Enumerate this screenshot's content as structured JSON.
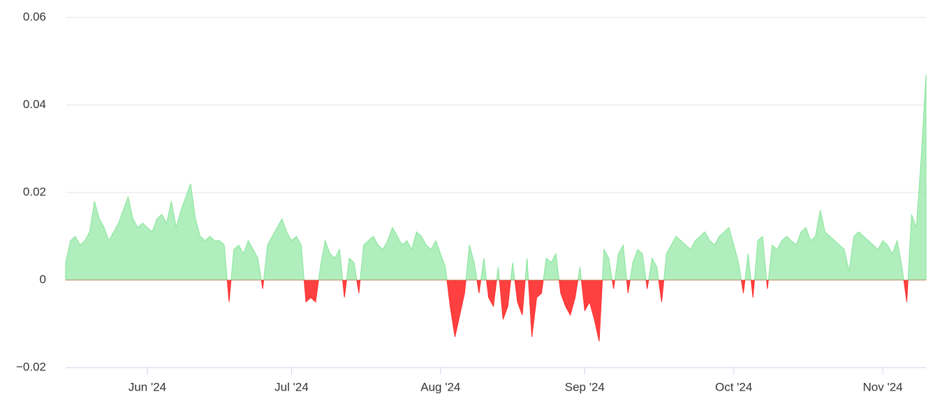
{
  "chart_data": {
    "type": "area",
    "categories": [
      null,
      null,
      null,
      null,
      null,
      null,
      null,
      null,
      null,
      null,
      null,
      null,
      null,
      null,
      null,
      null,
      null,
      "Jun '24",
      null,
      null,
      null,
      null,
      null,
      null,
      null,
      null,
      null,
      null,
      null,
      null,
      null,
      null,
      null,
      null,
      null,
      null,
      null,
      null,
      null,
      null,
      null,
      null,
      null,
      null,
      null,
      null,
      null,
      "Jul '24",
      null,
      null,
      null,
      null,
      null,
      null,
      null,
      null,
      null,
      null,
      null,
      null,
      null,
      null,
      null,
      null,
      null,
      null,
      null,
      null,
      null,
      null,
      null,
      null,
      null,
      null,
      null,
      null,
      null,
      null,
      "Aug '24",
      null,
      null,
      null,
      null,
      null,
      null,
      null,
      null,
      null,
      null,
      null,
      null,
      null,
      null,
      null,
      null,
      null,
      null,
      null,
      null,
      null,
      null,
      null,
      null,
      null,
      null,
      null,
      null,
      null,
      "Sep '24",
      null,
      null,
      null,
      null,
      null,
      null,
      null,
      null,
      null,
      null,
      null,
      null,
      null,
      null,
      null,
      null,
      null,
      null,
      null,
      null,
      null,
      null,
      null,
      null,
      null,
      null,
      null,
      null,
      null,
      null,
      "Oct '24",
      null,
      null,
      null,
      null,
      null,
      null,
      null,
      null,
      null,
      null,
      null,
      null,
      null,
      null,
      null,
      null,
      null,
      null,
      null,
      null,
      null,
      null,
      null,
      null,
      null,
      null,
      null,
      null,
      null,
      null,
      "Nov '24",
      null,
      null,
      null,
      null,
      null,
      null,
      null,
      null,
      null
    ],
    "series": [
      {
        "color": "#86e59a",
        "negative_color": "#ff2b2b",
        "values": [
          0.004,
          0.009,
          0.01,
          0.008,
          0.009,
          0.011,
          0.018,
          0.014,
          0.012,
          0.009,
          0.011,
          0.013,
          0.016,
          0.019,
          0.014,
          0.012,
          0.013,
          0.012,
          0.011,
          0.014,
          0.015,
          0.013,
          0.018,
          0.012,
          0.016,
          0.019,
          0.022,
          0.014,
          0.01,
          0.009,
          0.01,
          0.009,
          0.009,
          0.008,
          -0.005,
          0.007,
          0.008,
          0.006,
          0.009,
          0.007,
          0.005,
          -0.002,
          0.008,
          0.01,
          0.012,
          0.014,
          0.011,
          0.009,
          0.01,
          0.008,
          -0.005,
          -0.004,
          -0.005,
          0.003,
          0.009,
          0.006,
          0.005,
          0.007,
          -0.004,
          0.005,
          0.004,
          -0.003,
          0.008,
          0.009,
          0.01,
          0.008,
          0.007,
          0.009,
          0.012,
          0.01,
          0.008,
          0.009,
          0.007,
          0.011,
          0.01,
          0.008,
          0.007,
          0.009,
          0.006,
          0.003,
          -0.006,
          -0.013,
          -0.008,
          -0.003,
          0.008,
          0.004,
          -0.003,
          0.005,
          -0.004,
          -0.006,
          0.003,
          -0.009,
          -0.006,
          0.004,
          -0.005,
          -0.008,
          0.005,
          -0.013,
          -0.004,
          -0.003,
          0.005,
          0.004,
          0.006,
          -0.003,
          -0.006,
          -0.008,
          -0.004,
          0.003,
          -0.007,
          -0.005,
          -0.009,
          -0.014,
          0.007,
          0.005,
          -0.002,
          0.006,
          0.008,
          -0.003,
          0.004,
          0.007,
          0.006,
          -0.002,
          0.005,
          0.003,
          -0.005,
          0.006,
          0.008,
          0.01,
          0.009,
          0.008,
          0.007,
          0.009,
          0.01,
          0.011,
          0.009,
          0.008,
          0.01,
          0.011,
          0.012,
          0.008,
          0.004,
          -0.003,
          0.006,
          -0.004,
          0.009,
          0.01,
          -0.002,
          0.008,
          0.007,
          0.009,
          0.01,
          0.009,
          0.008,
          0.011,
          0.012,
          0.009,
          0.01,
          0.016,
          0.011,
          0.01,
          0.009,
          0.008,
          0.007,
          0.002,
          0.01,
          0.011,
          0.01,
          0.009,
          0.008,
          0.007,
          0.009,
          0.008,
          0.006,
          0.009,
          0.003,
          -0.005,
          0.015,
          0.012,
          0.028,
          0.047
        ]
      }
    ],
    "ylim": [
      -0.02,
      0.06
    ],
    "yticks": [
      {
        "value": -0.02,
        "label": "−0.02"
      },
      0,
      0.02,
      0.04,
      0.06
    ],
    "grid": true
  }
}
